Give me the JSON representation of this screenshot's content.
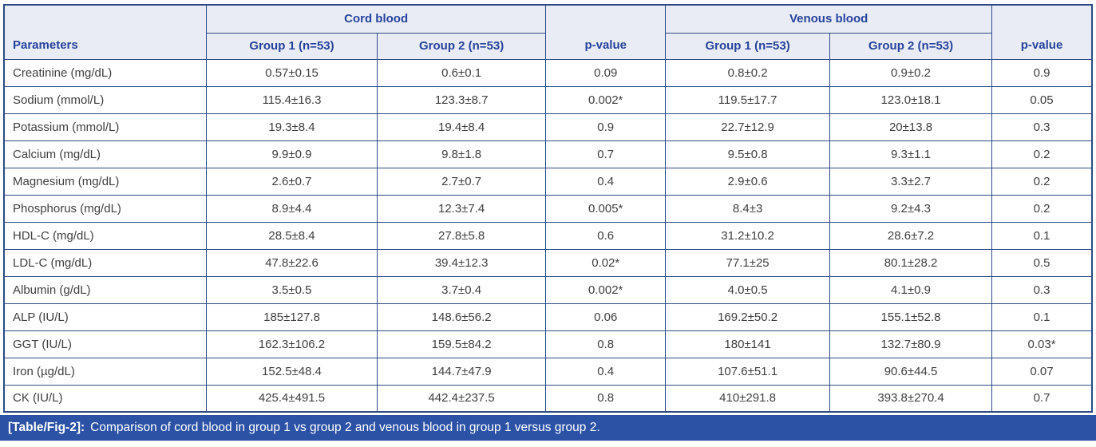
{
  "table": {
    "header": {
      "parameters": "Parameters",
      "cord_blood": "Cord blood",
      "venous_blood": "Venous blood",
      "cord_group1": "Group 1 (n=53)",
      "cord_group2": "Group 2 (n=53)",
      "venous_group1": "Group 1 (n=53)",
      "venous_group2": "Group 2 (n=53)",
      "pvalue_cord": "p-value",
      "pvalue_venous": "p-value"
    },
    "rows": [
      {
        "parameter": "Creatinine (mg/dL)",
        "cord_g1": "0.57±0.15",
        "cord_g2": "0.6±0.1",
        "cord_p": "0.09",
        "venous_g1": "0.8±0.2",
        "venous_g2": "0.9±0.2",
        "venous_p": "0.9"
      },
      {
        "parameter": "Sodium (mmol/L)",
        "cord_g1": "115.4±16.3",
        "cord_g2": "123.3±8.7",
        "cord_p": "0.002*",
        "venous_g1": "119.5±17.7",
        "venous_g2": "123.0±18.1",
        "venous_p": "0.05"
      },
      {
        "parameter": "Potassium (mmol/L)",
        "cord_g1": "19.3±8.4",
        "cord_g2": "19.4±8.4",
        "cord_p": "0.9",
        "venous_g1": "22.7±12.9",
        "venous_g2": "20±13.8",
        "venous_p": "0.3"
      },
      {
        "parameter": "Calcium (mg/dL)",
        "cord_g1": "9.9±0.9",
        "cord_g2": "9.8±1.8",
        "cord_p": "0.7",
        "venous_g1": "9.5±0.8",
        "venous_g2": "9.3±1.1",
        "venous_p": "0.2"
      },
      {
        "parameter": "Magnesium (mg/dL)",
        "cord_g1": "2.6±0.7",
        "cord_g2": "2.7±0.7",
        "cord_p": "0.4",
        "venous_g1": "2.9±0.6",
        "venous_g2": "3.3±2.7",
        "venous_p": "0.2"
      },
      {
        "parameter": "Phosphorus (mg/dL)",
        "cord_g1": "8.9±4.4",
        "cord_g2": "12.3±7.4",
        "cord_p": "0.005*",
        "venous_g1": "8.4±3",
        "venous_g2": "9.2±4.3",
        "venous_p": "0.2"
      },
      {
        "parameter": "HDL-C (mg/dL)",
        "cord_g1": "28.5±8.4",
        "cord_g2": "27.8±5.8",
        "cord_p": "0.6",
        "venous_g1": "31.2±10.2",
        "venous_g2": "28.6±7.2",
        "venous_p": "0.1"
      },
      {
        "parameter": "LDL-C (mg/dL)",
        "cord_g1": "47.8±22.6",
        "cord_g2": "39.4±12.3",
        "cord_p": "0.02*",
        "venous_g1": "77.1±25",
        "venous_g2": "80.1±28.2",
        "venous_p": "0.5"
      },
      {
        "parameter": "Albumin (g/dL)",
        "cord_g1": "3.5±0.5",
        "cord_g2": "3.7±0.4",
        "cord_p": "0.002*",
        "venous_g1": "4.0±0.5",
        "venous_g2": "4.1±0.9",
        "venous_p": "0.3"
      },
      {
        "parameter": "ALP (IU/L)",
        "cord_g1": "185±127.8",
        "cord_g2": "148.6±56.2",
        "cord_p": "0.06",
        "venous_g1": "169.2±50.2",
        "venous_g2": "155.1±52.8",
        "venous_p": "0.1"
      },
      {
        "parameter": "GGT (IU/L)",
        "cord_g1": "162.3±106.2",
        "cord_g2": "159.5±84.2",
        "cord_p": "0.8",
        "venous_g1": "180±141",
        "venous_g2": "132.7±80.9",
        "venous_p": "0.03*"
      },
      {
        "parameter": "Iron (µg/dL)",
        "cord_g1": "152.5±48.4",
        "cord_g2": "144.7±47.9",
        "cord_p": "0.4",
        "venous_g1": "107.6±51.1",
        "venous_g2": "90.6±44.5",
        "venous_p": "0.07"
      },
      {
        "parameter": "CK (IU/L)",
        "cord_g1": "425.4±491.5",
        "cord_g2": "442.4±237.5",
        "cord_p": "0.8",
        "venous_g1": "410±291.8",
        "venous_g2": "393.8±270.4",
        "venous_p": "0.7"
      }
    ]
  },
  "caption": {
    "label": "[Table/Fig-2]:",
    "text": "Comparison of cord blood in group 1 vs group 2 and venous blood in group 1 versus group 2."
  },
  "colors": {
    "border": "#2b4a86",
    "header_bg": "#eaecf5",
    "header_text": "#26439c",
    "body_text": "#3f3f3f",
    "caption_bg": "#2b52a5",
    "caption_text": "#ffffff",
    "page_bg": "#ffffff"
  }
}
